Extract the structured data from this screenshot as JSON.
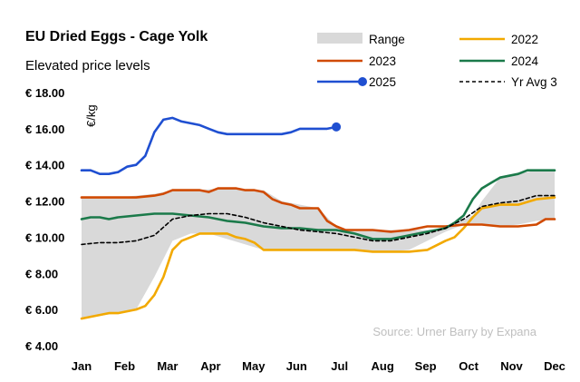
{
  "chart_data": {
    "type": "line",
    "title": "EU Dried Eggs - Cage Yolk",
    "subtitle": "Elevated price levels",
    "ylabel": "€/kg",
    "source": "Source: Urner Barry by Expana",
    "ylim": [
      4,
      18
    ],
    "y_ticks": [
      4,
      6,
      8,
      10,
      12,
      14,
      16,
      18
    ],
    "y_tick_labels": [
      "€ 4.00",
      "€ 6.00",
      "€ 8.00",
      "€ 10.00",
      "€ 12.00",
      "€ 14.00",
      "€ 16.00",
      "€ 18.00"
    ],
    "categories": [
      "Jan",
      "Feb",
      "Mar",
      "Apr",
      "May",
      "Jun",
      "Jul",
      "Aug",
      "Sep",
      "Oct",
      "Nov",
      "Dec"
    ],
    "x_unit": "week",
    "grid": false,
    "legend_position": "top-right",
    "range_band": {
      "name": "Range",
      "color": "#d9d9d9",
      "min_x": [
        0,
        4,
        6,
        8,
        10,
        12,
        14,
        16,
        20,
        24,
        26,
        28,
        30,
        32,
        34,
        36,
        38,
        40,
        42,
        44,
        46,
        48,
        50,
        52
      ],
      "min": [
        5.5,
        5.8,
        6.0,
        7.8,
        9.8,
        10.2,
        10.2,
        9.9,
        9.3,
        9.3,
        9.3,
        9.3,
        9.3,
        9.2,
        9.2,
        9.3,
        9.8,
        10.3,
        10.7,
        10.7,
        10.6,
        10.7,
        10.9,
        11.0
      ],
      "max_x": [
        0,
        4,
        8,
        10,
        12,
        16,
        20,
        22,
        26,
        28,
        30,
        34,
        38,
        40,
        42,
        43,
        44,
        46,
        48,
        50,
        52
      ],
      "max": [
        12.2,
        12.2,
        12.4,
        12.6,
        12.6,
        12.7,
        12.6,
        12.0,
        11.6,
        10.6,
        10.3,
        10.4,
        10.4,
        10.5,
        11.0,
        11.2,
        12.0,
        13.3,
        13.5,
        13.7,
        13.7
      ]
    },
    "series": [
      {
        "name": "2022",
        "color": "#f2a900",
        "x": [
          0,
          1,
          2,
          3,
          4,
          5,
          6,
          7,
          8,
          9,
          10,
          11,
          12,
          13,
          14,
          15,
          16,
          17,
          18,
          19,
          20,
          22,
          24,
          26,
          28,
          30,
          32,
          34,
          36,
          38,
          40,
          41,
          42,
          43,
          44,
          46,
          48,
          50,
          52
        ],
        "values": [
          5.5,
          5.6,
          5.7,
          5.8,
          5.8,
          5.9,
          6.0,
          6.2,
          6.8,
          7.8,
          9.3,
          9.8,
          10.0,
          10.2,
          10.2,
          10.2,
          10.2,
          10.0,
          9.9,
          9.7,
          9.3,
          9.3,
          9.3,
          9.3,
          9.3,
          9.3,
          9.2,
          9.2,
          9.2,
          9.3,
          9.8,
          10.0,
          10.5,
          11.1,
          11.6,
          11.8,
          11.8,
          12.1,
          12.2
        ]
      },
      {
        "name": "2023",
        "color": "#d04a02",
        "x": [
          0,
          2,
          4,
          6,
          8,
          9,
          10,
          11,
          12,
          13,
          14,
          15,
          16,
          17,
          18,
          19,
          20,
          21,
          22,
          23,
          24,
          26,
          27,
          28,
          29,
          30,
          32,
          34,
          36,
          38,
          40,
          42,
          44,
          46,
          48,
          50,
          51,
          52
        ],
        "values": [
          12.2,
          12.2,
          12.2,
          12.2,
          12.3,
          12.4,
          12.6,
          12.6,
          12.6,
          12.6,
          12.5,
          12.7,
          12.7,
          12.7,
          12.6,
          12.6,
          12.5,
          12.1,
          11.9,
          11.8,
          11.6,
          11.6,
          10.9,
          10.6,
          10.4,
          10.4,
          10.4,
          10.3,
          10.4,
          10.6,
          10.6,
          10.7,
          10.7,
          10.6,
          10.6,
          10.7,
          11.0,
          11.0
        ]
      },
      {
        "name": "2024",
        "color": "#1b7a4a",
        "x": [
          0,
          1,
          2,
          3,
          4,
          6,
          8,
          10,
          12,
          14,
          16,
          18,
          20,
          22,
          24,
          26,
          28,
          30,
          32,
          34,
          36,
          38,
          40,
          41,
          42,
          43,
          44,
          45,
          46,
          47,
          48,
          49,
          50,
          52
        ],
        "values": [
          11.0,
          11.1,
          11.1,
          11.0,
          11.1,
          11.2,
          11.3,
          11.3,
          11.2,
          11.1,
          10.9,
          10.8,
          10.6,
          10.5,
          10.5,
          10.4,
          10.4,
          10.2,
          9.9,
          9.9,
          10.1,
          10.3,
          10.5,
          10.8,
          11.2,
          12.1,
          12.7,
          13.0,
          13.3,
          13.4,
          13.5,
          13.7,
          13.7,
          13.7
        ]
      },
      {
        "name": "2025",
        "color": "#1f4fd1",
        "marker_last": true,
        "x": [
          0,
          1,
          2,
          3,
          4,
          5,
          6,
          7,
          8,
          9,
          10,
          11,
          12,
          13,
          14,
          15,
          16,
          17,
          18,
          19,
          20,
          21,
          22,
          23,
          24,
          25,
          26,
          27,
          28
        ],
        "values": [
          13.7,
          13.7,
          13.5,
          13.5,
          13.6,
          13.9,
          14.0,
          14.5,
          15.8,
          16.5,
          16.6,
          16.4,
          16.3,
          16.2,
          16.0,
          15.8,
          15.7,
          15.7,
          15.7,
          15.7,
          15.7,
          15.7,
          15.7,
          15.8,
          16.0,
          16.0,
          16.0,
          16.0,
          16.1
        ]
      },
      {
        "name": "Yr Avg 3",
        "color": "#000000",
        "dashed": true,
        "x": [
          0,
          2,
          4,
          6,
          8,
          10,
          12,
          14,
          16,
          18,
          20,
          22,
          24,
          26,
          28,
          30,
          32,
          34,
          36,
          38,
          40,
          42,
          44,
          46,
          48,
          50,
          52
        ],
        "values": [
          9.6,
          9.7,
          9.7,
          9.8,
          10.1,
          11.0,
          11.2,
          11.3,
          11.3,
          11.1,
          10.8,
          10.6,
          10.4,
          10.3,
          10.2,
          10.0,
          9.8,
          9.8,
          10.0,
          10.2,
          10.5,
          11.0,
          11.7,
          11.9,
          12.0,
          12.3,
          12.3
        ]
      }
    ],
    "legend": [
      {
        "label": "Range",
        "kind": "band",
        "color": "#d9d9d9"
      },
      {
        "label": "2022",
        "kind": "line",
        "color": "#f2a900"
      },
      {
        "label": "2023",
        "kind": "line",
        "color": "#d04a02"
      },
      {
        "label": "2024",
        "kind": "line",
        "color": "#1b7a4a"
      },
      {
        "label": "2025",
        "kind": "marker-line",
        "color": "#1f4fd1"
      },
      {
        "label": "Yr Avg 3",
        "kind": "dashed",
        "color": "#000000"
      }
    ]
  }
}
